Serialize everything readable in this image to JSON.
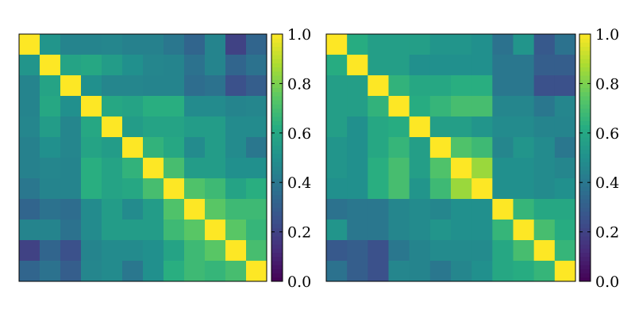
{
  "chart_data": [
    {
      "type": "heatmap",
      "title": "",
      "xlabel": "",
      "ylabel": "",
      "size": 12,
      "colormap": "viridis",
      "colorbar": {
        "min": 0.0,
        "max": 1.0,
        "ticks": [
          "0.0",
          "0.2",
          "0.4",
          "0.6",
          "0.8",
          "1.0"
        ]
      },
      "values": [
        [
          1.0,
          0.52,
          0.45,
          0.45,
          0.46,
          0.44,
          0.44,
          0.4,
          0.33,
          0.45,
          0.2,
          0.33
        ],
        [
          0.52,
          1.0,
          0.58,
          0.6,
          0.55,
          0.5,
          0.46,
          0.45,
          0.38,
          0.45,
          0.33,
          0.38
        ],
        [
          0.45,
          0.58,
          1.0,
          0.5,
          0.46,
          0.46,
          0.45,
          0.45,
          0.36,
          0.38,
          0.25,
          0.3
        ],
        [
          0.45,
          0.6,
          0.5,
          1.0,
          0.6,
          0.58,
          0.63,
          0.63,
          0.48,
          0.48,
          0.45,
          0.46
        ],
        [
          0.46,
          0.55,
          0.46,
          0.6,
          1.0,
          0.55,
          0.58,
          0.58,
          0.55,
          0.55,
          0.48,
          0.48
        ],
        [
          0.44,
          0.5,
          0.46,
          0.58,
          0.55,
          1.0,
          0.65,
          0.6,
          0.48,
          0.55,
          0.48,
          0.4
        ],
        [
          0.44,
          0.46,
          0.45,
          0.63,
          0.58,
          0.65,
          1.0,
          0.7,
          0.55,
          0.55,
          0.5,
          0.5
        ],
        [
          0.4,
          0.45,
          0.45,
          0.63,
          0.58,
          0.6,
          0.7,
          1.0,
          0.72,
          0.68,
          0.58,
          0.63
        ],
        [
          0.33,
          0.38,
          0.36,
          0.48,
          0.55,
          0.48,
          0.55,
          0.72,
          1.0,
          0.74,
          0.68,
          0.68
        ],
        [
          0.45,
          0.45,
          0.38,
          0.48,
          0.55,
          0.55,
          0.55,
          0.68,
          0.74,
          1.0,
          0.74,
          0.66
        ],
        [
          0.2,
          0.33,
          0.25,
          0.45,
          0.48,
          0.48,
          0.5,
          0.58,
          0.68,
          0.74,
          1.0,
          0.7
        ],
        [
          0.33,
          0.38,
          0.3,
          0.46,
          0.48,
          0.4,
          0.5,
          0.63,
          0.68,
          0.66,
          0.7,
          1.0
        ]
      ]
    },
    {
      "type": "heatmap",
      "title": "",
      "xlabel": "",
      "ylabel": "",
      "size": 12,
      "colormap": "viridis",
      "colorbar": {
        "min": 0.0,
        "max": 1.0,
        "ticks": [
          "0.0",
          "0.2",
          "0.4",
          "0.6",
          "0.8",
          "1.0"
        ]
      },
      "values": [
        [
          1.0,
          0.62,
          0.56,
          0.56,
          0.56,
          0.52,
          0.52,
          0.5,
          0.38,
          0.52,
          0.28,
          0.38
        ],
        [
          0.62,
          1.0,
          0.56,
          0.56,
          0.5,
          0.5,
          0.5,
          0.5,
          0.4,
          0.4,
          0.3,
          0.3
        ],
        [
          0.56,
          0.56,
          1.0,
          0.65,
          0.6,
          0.6,
          0.63,
          0.63,
          0.4,
          0.4,
          0.25,
          0.25
        ],
        [
          0.56,
          0.56,
          0.65,
          1.0,
          0.62,
          0.66,
          0.7,
          0.7,
          0.46,
          0.46,
          0.4,
          0.46
        ],
        [
          0.56,
          0.5,
          0.6,
          0.62,
          1.0,
          0.56,
          0.56,
          0.52,
          0.48,
          0.48,
          0.45,
          0.45
        ],
        [
          0.52,
          0.5,
          0.6,
          0.66,
          0.56,
          1.0,
          0.72,
          0.68,
          0.46,
          0.52,
          0.48,
          0.4
        ],
        [
          0.52,
          0.5,
          0.63,
          0.7,
          0.56,
          0.72,
          1.0,
          0.85,
          0.5,
          0.5,
          0.48,
          0.46
        ],
        [
          0.5,
          0.5,
          0.63,
          0.7,
          0.52,
          0.68,
          0.85,
          1.0,
          0.5,
          0.5,
          0.48,
          0.5
        ],
        [
          0.38,
          0.4,
          0.4,
          0.46,
          0.48,
          0.46,
          0.5,
          0.5,
          1.0,
          0.66,
          0.6,
          0.6
        ],
        [
          0.52,
          0.4,
          0.4,
          0.46,
          0.48,
          0.52,
          0.5,
          0.5,
          0.66,
          1.0,
          0.7,
          0.62
        ],
        [
          0.28,
          0.3,
          0.25,
          0.4,
          0.45,
          0.48,
          0.48,
          0.48,
          0.6,
          0.7,
          1.0,
          0.66
        ],
        [
          0.38,
          0.3,
          0.25,
          0.46,
          0.45,
          0.4,
          0.46,
          0.5,
          0.6,
          0.62,
          0.66,
          1.0
        ]
      ]
    }
  ]
}
